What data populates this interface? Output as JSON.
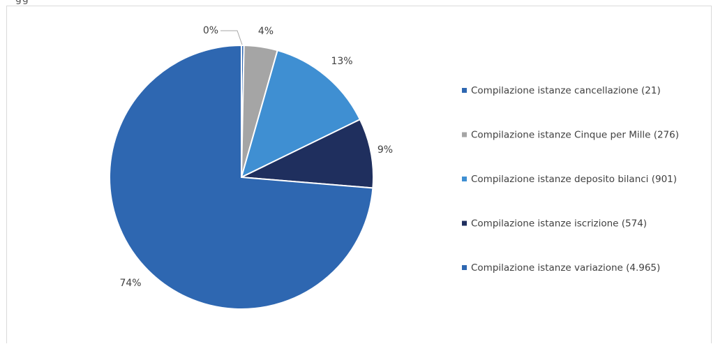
{
  "header_fragment": "gg",
  "chart_data": {
    "type": "pie",
    "title": "",
    "slices": [
      {
        "label": "Compilazione istanze cancellazione (21)",
        "value": 21,
        "percent_label": "0%",
        "color": "#2E67B1"
      },
      {
        "label": "Compilazione istanze Cinque per Mille (276)",
        "value": 276,
        "percent_label": "4%",
        "color": "#A5A5A5"
      },
      {
        "label": "Compilazione istanze deposito bilanci (901)",
        "value": 901,
        "percent_label": "13%",
        "color": "#3F8FD2"
      },
      {
        "label": "Compilazione istanze iscrizione (574)",
        "value": 574,
        "percent_label": "9%",
        "color": "#1F2F5E"
      },
      {
        "label": "Compilazione istanze variazione (4.965)",
        "value": 4965,
        "percent_label": "74%",
        "color": "#2E67B1"
      }
    ],
    "legend": "right",
    "start_angle": "top, clockwise"
  }
}
